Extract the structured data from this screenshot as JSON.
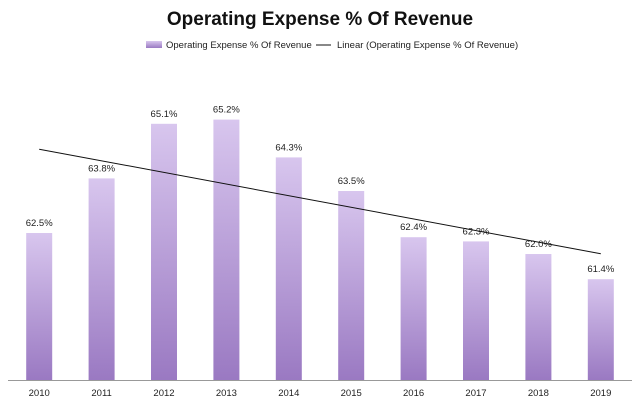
{
  "chart_data": {
    "type": "bar",
    "title": "Operating Expense % Of Revenue",
    "categories": [
      "2010",
      "2011",
      "2012",
      "2013",
      "2014",
      "2015",
      "2016",
      "2017",
      "2018",
      "2019"
    ],
    "series": [
      {
        "name": "Operating Expense % Of Revenue",
        "values": [
          62.5,
          63.8,
          65.1,
          65.2,
          64.3,
          63.5,
          62.4,
          62.3,
          62.0,
          61.4
        ],
        "labels": [
          "62.5%",
          "63.8%",
          "65.1%",
          "65.2%",
          "64.3%",
          "63.5%",
          "62.4%",
          "62.3%",
          "62.0%",
          "61.4%"
        ]
      }
    ],
    "trendline": {
      "name": "Linear (Operating Expense % Of Revenue)",
      "type": "linear"
    },
    "xlabel": "",
    "ylabel": "",
    "ylim": [
      59.0,
      66.0
    ],
    "grid": false,
    "legend": "top-center",
    "colors": {
      "bar_top": "#d8c6ee",
      "bar_bottom": "#9a79c2",
      "trendline": "#111111",
      "axis": "#999999"
    }
  }
}
